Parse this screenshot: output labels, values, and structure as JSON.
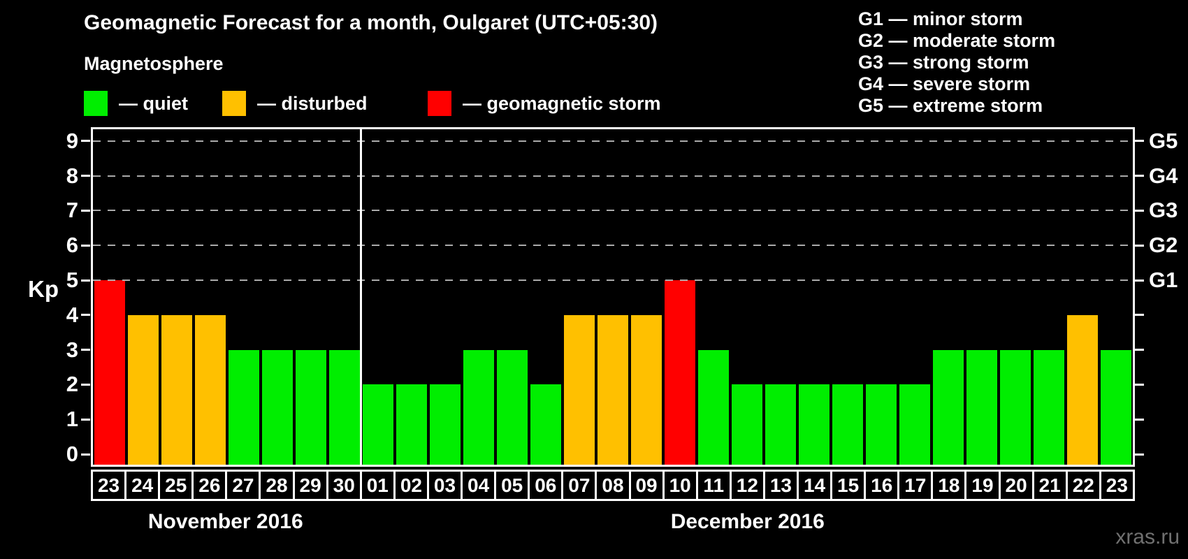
{
  "header": {
    "title": "Geomagnetic Forecast for a month, Oulgaret (UTC+05:30)",
    "subtitle": "Magnetosphere"
  },
  "legend": {
    "items": [
      {
        "name": "quiet",
        "swatch_color": "#00ee00",
        "label": "— quiet"
      },
      {
        "name": "disturbed",
        "swatch_color": "#ffc000",
        "label": "— disturbed"
      },
      {
        "name": "storm",
        "swatch_color": "#ff0000",
        "label": "— geomagnetic storm"
      }
    ]
  },
  "storm_scale_legend": {
    "items": [
      "G1 — minor storm",
      "G2 — moderate storm",
      "G3 — strong storm",
      "G4 — severe storm",
      "G5 — extreme storm"
    ]
  },
  "watermark": "xras.ru",
  "chart_data": {
    "type": "bar",
    "title": "Geomagnetic Forecast for a month, Oulgaret (UTC+05:30)",
    "ylabel": "Kp",
    "ylim": [
      0,
      9
    ],
    "y_ticks": [
      0,
      1,
      2,
      3,
      4,
      5,
      6,
      7,
      8,
      9
    ],
    "right_axis_labels": [
      "G1",
      "G2",
      "G3",
      "G4",
      "G5"
    ],
    "grid": "dashed horizontal gridlines at Kp 5-9 (G1-G5 levels)",
    "colors": {
      "quiet": "#00ee00",
      "disturbed": "#ffc000",
      "storm": "#ff0000"
    },
    "months": [
      {
        "label": "November 2016",
        "days": [
          {
            "day": "23",
            "kp": 5,
            "status": "storm"
          },
          {
            "day": "24",
            "kp": 4,
            "status": "disturbed"
          },
          {
            "day": "25",
            "kp": 4,
            "status": "disturbed"
          },
          {
            "day": "26",
            "kp": 4,
            "status": "disturbed"
          },
          {
            "day": "27",
            "kp": 3,
            "status": "quiet"
          },
          {
            "day": "28",
            "kp": 3,
            "status": "quiet"
          },
          {
            "day": "29",
            "kp": 3,
            "status": "quiet"
          },
          {
            "day": "30",
            "kp": 3,
            "status": "quiet"
          }
        ]
      },
      {
        "label": "December 2016",
        "days": [
          {
            "day": "01",
            "kp": 2,
            "status": "quiet"
          },
          {
            "day": "02",
            "kp": 2,
            "status": "quiet"
          },
          {
            "day": "03",
            "kp": 2,
            "status": "quiet"
          },
          {
            "day": "04",
            "kp": 3,
            "status": "quiet"
          },
          {
            "day": "05",
            "kp": 3,
            "status": "quiet"
          },
          {
            "day": "06",
            "kp": 2,
            "status": "quiet"
          },
          {
            "day": "07",
            "kp": 4,
            "status": "disturbed"
          },
          {
            "day": "08",
            "kp": 4,
            "status": "disturbed"
          },
          {
            "day": "09",
            "kp": 4,
            "status": "disturbed"
          },
          {
            "day": "10",
            "kp": 5,
            "status": "storm"
          },
          {
            "day": "11",
            "kp": 3,
            "status": "quiet"
          },
          {
            "day": "12",
            "kp": 2,
            "status": "quiet"
          },
          {
            "day": "13",
            "kp": 2,
            "status": "quiet"
          },
          {
            "day": "14",
            "kp": 2,
            "status": "quiet"
          },
          {
            "day": "15",
            "kp": 2,
            "status": "quiet"
          },
          {
            "day": "16",
            "kp": 2,
            "status": "quiet"
          },
          {
            "day": "17",
            "kp": 2,
            "status": "quiet"
          },
          {
            "day": "18",
            "kp": 3,
            "status": "quiet"
          },
          {
            "day": "19",
            "kp": 3,
            "status": "quiet"
          },
          {
            "day": "20",
            "kp": 3,
            "status": "quiet"
          },
          {
            "day": "21",
            "kp": 3,
            "status": "quiet"
          },
          {
            "day": "22",
            "kp": 4,
            "status": "disturbed"
          },
          {
            "day": "23",
            "kp": 3,
            "status": "quiet"
          }
        ]
      }
    ]
  }
}
